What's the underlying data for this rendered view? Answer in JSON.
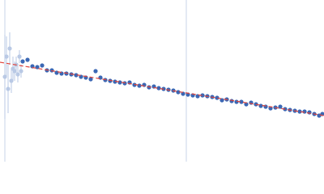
{
  "chart_data": {
    "type": "scatter",
    "xlim": [
      0,
      400
    ],
    "ylim": [
      0,
      200
    ],
    "vlines": {
      "x": [
        6,
        230
      ],
      "color": "#c9d5ea"
    },
    "fit": {
      "x": [
        0,
        400
      ],
      "values": [
        123,
        57
      ],
      "color": "#e0443c"
    },
    "series": [
      {
        "color": "#b9c9e5",
        "x": [
          6,
          8,
          10,
          12,
          14,
          16,
          18,
          20,
          22,
          24,
          26
        ],
        "values": [
          105,
          130,
          90,
          140,
          100,
          115,
          112,
          120,
          108,
          130,
          112
        ],
        "errors": [
          52,
          25,
          30,
          20,
          15,
          15,
          12,
          10,
          10,
          8,
          8
        ]
      },
      {
        "color": "#3b67b4",
        "x": [
          28,
          34,
          40,
          46,
          52,
          58,
          64,
          70,
          76,
          82,
          88,
          94,
          100,
          106,
          112,
          118,
          124,
          130,
          136,
          142,
          148,
          154,
          160,
          166,
          172,
          178,
          184,
          190,
          196,
          202,
          208,
          214,
          220,
          226,
          232,
          238,
          244,
          250,
          256,
          262,
          268,
          274,
          280,
          286,
          292,
          298,
          304,
          310,
          316,
          322,
          328,
          334,
          340,
          346,
          352,
          358,
          364,
          370,
          376,
          382,
          388,
          394,
          398
        ],
        "values": [
          124,
          126,
          118,
          117,
          119,
          113,
          113,
          110,
          109,
          109,
          108,
          107,
          105,
          104,
          102,
          112,
          104,
          101,
          100,
          99,
          98,
          97,
          98,
          95,
          94,
          95,
          92,
          93,
          91,
          90,
          89,
          88,
          86,
          84,
          83,
          82,
          81,
          82,
          81,
          80,
          79,
          76,
          77,
          75,
          74,
          74,
          71,
          73,
          71,
          69,
          68,
          66,
          67,
          68,
          65,
          64,
          63,
          62,
          62,
          61,
          59,
          57,
          59
        ]
      }
    ]
  }
}
